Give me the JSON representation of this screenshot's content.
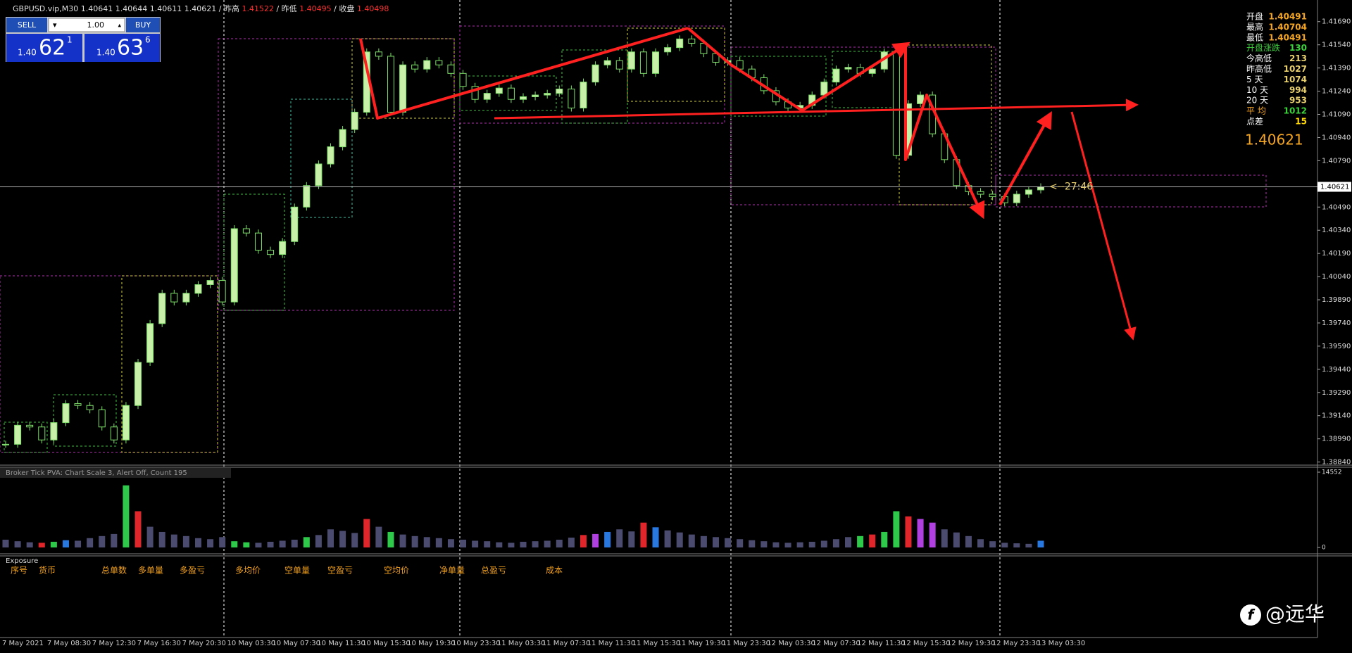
{
  "header": {
    "symbol": "GBPUSD.vip,M30",
    "ohlc": [
      1.40641,
      1.40644,
      1.40611,
      1.40621
    ],
    "prev_high_label": "/ 昨高",
    "prev_high": 1.41522,
    "prev_low_label": "/ 昨低",
    "prev_low": 1.40495,
    "close_label": "/ 收盘",
    "close": 1.40498
  },
  "trade_panel": {
    "sell": "SELL",
    "buy": "BUY",
    "lots": "1.00",
    "bid": {
      "prefix": "1.40",
      "big": "62",
      "small": "1"
    },
    "ask": {
      "prefix": "1.40",
      "big": "63",
      "small": "6"
    }
  },
  "info_panel": {
    "rows": [
      {
        "label": "开盘",
        "value": 1.40491,
        "label_color": "#ffffff",
        "value_color": "#f5a623"
      },
      {
        "label": "最高",
        "value": 1.40704,
        "label_color": "#ffffff",
        "value_color": "#f5a623"
      },
      {
        "label": "最低",
        "value": 1.40491,
        "label_color": "#ffffff",
        "value_color": "#f5a623"
      },
      {
        "label": "开盘涨跌",
        "value": 130,
        "label_color": "#3cd23c",
        "value_color": "#3cd23c"
      },
      {
        "label": "今高低",
        "value": 213,
        "label_color": "#ffffff",
        "value_color": "#e8d070"
      },
      {
        "label": "昨高低",
        "value": 1027,
        "label_color": "#ffffff",
        "value_color": "#e8d070"
      },
      {
        "label": "5  天",
        "value": 1074,
        "label_color": "#ffffff",
        "value_color": "#e8d070"
      },
      {
        "label": "10  天",
        "value": 994,
        "label_color": "#ffffff",
        "value_color": "#e8d070"
      },
      {
        "label": "20  天",
        "value": 953,
        "label_color": "#ffffff",
        "value_color": "#e8d070"
      },
      {
        "label": "平  均",
        "value": 1012,
        "label_color": "#f5a623",
        "value_color": "#3cd23c"
      },
      {
        "label": "点差",
        "value": 15,
        "label_color": "#ffffff",
        "value_color": "#ffd700"
      }
    ],
    "price": 1.40621
  },
  "chart_data": [
    {
      "type": "candlestick",
      "up_color": "#c8f0a8",
      "down_color": "#000000",
      "wick_color": "#7ee06a",
      "closes": [
        1.38955,
        1.39078,
        1.39067,
        1.38983,
        1.39095,
        1.39218,
        1.39206,
        1.39178,
        1.39067,
        1.38983,
        1.39206,
        1.39485,
        1.39736,
        1.39932,
        1.39876,
        1.39932,
        1.39988,
        1.40015,
        1.39876,
        1.4035,
        1.40322,
        1.40211,
        1.40183,
        1.40267,
        1.4049,
        1.40629,
        1.40769,
        1.4088,
        1.40992,
        1.41104,
        1.41494,
        1.41466,
        1.41104,
        1.4141,
        1.41383,
        1.41438,
        1.4141,
        1.41355,
        1.41271,
        1.41187,
        1.41226,
        1.4126,
        1.41187,
        1.41204,
        1.41215,
        1.41226,
        1.41254,
        1.41131,
        1.41299,
        1.4141,
        1.41438,
        1.41383,
        1.41494,
        1.41355,
        1.41494,
        1.41522,
        1.41578,
        1.4155,
        1.41483,
        1.41427,
        1.41438,
        1.41383,
        1.41327,
        1.41243,
        1.41171,
        1.41131,
        1.41148,
        1.41215,
        1.41299,
        1.41383,
        1.41394,
        1.41355,
        1.41383,
        1.41494,
        1.40825,
        1.41159,
        1.41215,
        1.40964,
        1.40797,
        1.40629,
        1.4059,
        1.40573,
        1.40557,
        1.40518,
        1.40573,
        1.40601,
        1.40621
      ],
      "x": [
        "7 May 2021",
        "7 May 08:30",
        "7 May 12:30",
        "7 May 16:30",
        "7 May 20:30",
        "10 May 03:30",
        "10 May 07:30",
        "10 May 11:30",
        "10 May 15:30",
        "10 May 19:30",
        "10 May 23:30",
        "11 May 03:30",
        "11 May 07:30",
        "11 May 11:30",
        "11 May 15:30",
        "11 May 19:30",
        "11 May 23:30",
        "12 May 03:30",
        "12 May 07:30",
        "12 May 11:30",
        "12 May 15:30",
        "12 May 19:30",
        "12 May 23:30",
        "13 May 03:30"
      ],
      "ylim": [
        1.3882,
        1.4183
      ],
      "yticks": [
        {
          "value": 1.4169,
          "label": "1.41690"
        },
        {
          "value": 1.4154,
          "label": "1.41540"
        },
        {
          "value": 1.4139,
          "label": "1.41390"
        },
        {
          "value": 1.4124,
          "label": "1.41240"
        },
        {
          "value": 1.4109,
          "label": "1.41090"
        },
        {
          "value": 1.4094,
          "label": "1.40940"
        },
        {
          "value": 1.4079,
          "label": "1.40790"
        },
        {
          "value": 1.4049,
          "label": "1.40490"
        },
        {
          "value": 1.4034,
          "label": "1.40340"
        },
        {
          "value": 1.4019,
          "label": "1.40190"
        },
        {
          "value": 1.4004,
          "label": "1.40040"
        },
        {
          "value": 1.3989,
          "label": "1.39890"
        },
        {
          "value": 1.3974,
          "label": "1.39740"
        },
        {
          "value": 1.3959,
          "label": "1.39590"
        },
        {
          "value": 1.3944,
          "label": "1.39440"
        },
        {
          "value": 1.3929,
          "label": "1.39290"
        },
        {
          "value": 1.3914,
          "label": "1.39140"
        },
        {
          "value": 1.3899,
          "label": "1.38990"
        },
        {
          "value": 1.3884,
          "label": "1.38840"
        }
      ],
      "last_price": {
        "value": 1.40621,
        "label": "1.40621"
      },
      "countdown": "<--27:46"
    },
    {
      "type": "bar",
      "title": "Broker Tick PVA:  Chart Scale  3,  Alert Off,  Count  195",
      "values": [
        1500,
        1200,
        1000,
        900,
        1100,
        1400,
        1300,
        1800,
        2200,
        2600,
        12000,
        7000,
        4000,
        3000,
        2500,
        2200,
        1800,
        1600,
        2000,
        1200,
        1000,
        900,
        1100,
        1300,
        1500,
        2000,
        2400,
        3500,
        3200,
        2800,
        5500,
        4000,
        3000,
        2500,
        2200,
        2000,
        1800,
        1600,
        1500,
        1300,
        1200,
        1000,
        900,
        1100,
        1200,
        1300,
        1500,
        1900,
        2400,
        2600,
        3000,
        3500,
        3100,
        4800,
        3900,
        3300,
        2900,
        2500,
        2200,
        2000,
        1800,
        1600,
        1400,
        1200,
        1000,
        900,
        1000,
        1100,
        1300,
        1600,
        2000,
        2200,
        2500,
        3000,
        7000,
        6000,
        5500,
        4800,
        3500,
        2900,
        2200,
        1600,
        1200,
        900,
        800,
        700,
        1300
      ],
      "colors": [
        "#4b4b70",
        "#4b4b70",
        "#4b4b70",
        "#e0262a",
        "#2ec84a",
        "#2878e0",
        "#4b4b70",
        "#4b4b70",
        "#4b4b70",
        "#4b4b70",
        "#2ec84a",
        "#e0262a",
        "#4b4b70",
        "#4b4b70",
        "#4b4b70",
        "#4b4b70",
        "#4b4b70",
        "#4b4b70",
        "#4b4b70",
        "#2ec84a",
        "#2ec84a",
        "#4b4b70",
        "#4b4b70",
        "#4b4b70",
        "#4b4b70",
        "#2ec84a",
        "#4b4b70",
        "#4b4b70",
        "#4b4b70",
        "#4b4b70",
        "#e0262a",
        "#4b4b70",
        "#2ec84a",
        "#4b4b70",
        "#4b4b70",
        "#4b4b70",
        "#4b4b70",
        "#4b4b70",
        "#4b4b70",
        "#4b4b70",
        "#4b4b70",
        "#4b4b70",
        "#4b4b70",
        "#4b4b70",
        "#4b4b70",
        "#4b4b70",
        "#4b4b70",
        "#4b4b70",
        "#e0262a",
        "#b040e0",
        "#2878e0",
        "#4b4b70",
        "#4b4b70",
        "#e0262a",
        "#2878e0",
        "#4b4b70",
        "#4b4b70",
        "#4b4b70",
        "#4b4b70",
        "#4b4b70",
        "#4b4b70",
        "#4b4b70",
        "#4b4b70",
        "#4b4b70",
        "#4b4b70",
        "#4b4b70",
        "#4b4b70",
        "#4b4b70",
        "#4b4b70",
        "#4b4b70",
        "#4b4b70",
        "#2ec84a",
        "#e0262a",
        "#2ec84a",
        "#2ec84a",
        "#e0262a",
        "#b040e0",
        "#b040e0",
        "#4b4b70",
        "#4b4b70",
        "#4b4b70",
        "#4b4b70",
        "#4b4b70",
        "#4b4b70",
        "#4b4b70",
        "#4b4b70",
        "#2878e0"
      ],
      "ylim": [
        0,
        14552
      ],
      "yticks": [
        0,
        14552
      ]
    }
  ],
  "exposure": {
    "title": "Exposure",
    "columns": [
      "序号",
      "货币",
      "总单数",
      "多单量",
      "多盈亏",
      "多均价",
      "空单量",
      "空盈亏",
      "空均价",
      "净单量",
      "总盈亏",
      "成本"
    ]
  },
  "watermark": "@远华"
}
